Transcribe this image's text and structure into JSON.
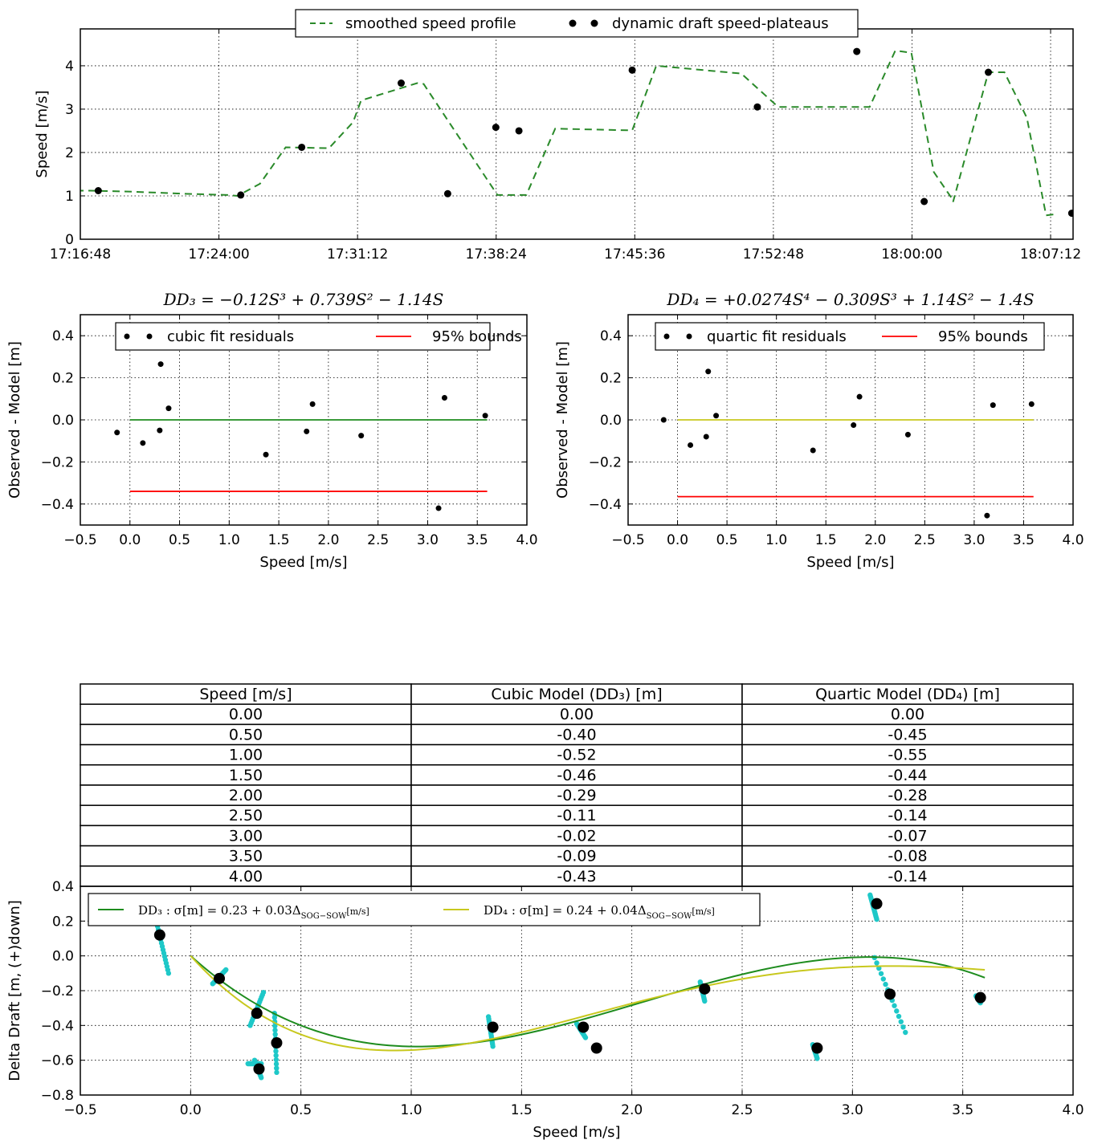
{
  "chart_data": [
    {
      "id": "speed",
      "type": "line",
      "xlabel": "",
      "ylabel": "Speed [m/s]",
      "xlim": [
        0,
        3094
      ],
      "ylim": [
        0,
        4.85
      ],
      "grid": true,
      "legend_placement": "top-center",
      "x_ticks": [
        {
          "v": 0,
          "label": "17:16:48"
        },
        {
          "v": 432,
          "label": "17:24:00"
        },
        {
          "v": 864,
          "label": "17:31:12"
        },
        {
          "v": 1296,
          "label": "17:38:24"
        },
        {
          "v": 1728,
          "label": "17:45:36"
        },
        {
          "v": 2160,
          "label": "17:52:48"
        },
        {
          "v": 2592,
          "label": "18:00:00"
        },
        {
          "v": 3024,
          "label": "18:07:12"
        }
      ],
      "y_ticks": [
        0,
        1,
        2,
        3,
        4
      ],
      "series": [
        {
          "name": "smoothed speed profile",
          "style": "dashed",
          "color": "#2a8a2a",
          "x": [
            -50,
            30,
            150,
            320,
            460,
            490,
            560,
            640,
            775,
            850,
            875,
            1050,
            1070,
            1300,
            1390,
            1480,
            1720,
            1795,
            2060,
            2175,
            2460,
            2540,
            2590,
            2660,
            2720,
            2720,
            2830,
            2880,
            2950,
            3010,
            3040
          ],
          "y": [
            1.12,
            1.12,
            1.1,
            1.05,
            1.02,
            1.0,
            1.28,
            2.12,
            2.1,
            2.7,
            3.2,
            3.6,
            3.58,
            1.02,
            1.02,
            2.55,
            2.51,
            4.0,
            3.82,
            3.05,
            3.05,
            4.35,
            4.3,
            1.55,
            0.9,
            0.86,
            3.85,
            3.85,
            2.8,
            0.55,
            0.58
          ]
        },
        {
          "name": "dynamic draft speed-plateaus",
          "style": "markers",
          "color": "#000000",
          "x": [
            56,
            500,
            690,
            1000,
            1145,
            1295,
            1367,
            1720,
            2110,
            2420,
            2630,
            2830,
            3090
          ],
          "y": [
            1.12,
            1.02,
            2.12,
            3.6,
            1.05,
            2.58,
            2.5,
            3.9,
            3.05,
            4.33,
            0.87,
            3.85,
            0.6
          ]
        }
      ]
    },
    {
      "id": "cubic-residuals",
      "type": "scatter",
      "title": "DD₃ = −0.12S³ + 0.739S² − 1.14S",
      "xlabel": "Speed [m/s]",
      "ylabel": "Observed - Model [m]",
      "xlim": [
        -0.5,
        4.0
      ],
      "ylim": [
        -0.5,
        0.5
      ],
      "grid": true,
      "legend_placement": "top-center",
      "x_ticks": [
        -0.5,
        0.0,
        0.5,
        1.0,
        1.5,
        2.0,
        2.5,
        3.0,
        3.5,
        4.0
      ],
      "y_ticks": [
        -0.4,
        -0.2,
        0.0,
        0.2,
        0.4
      ],
      "points": {
        "name": "cubic fit residuals",
        "x": [
          -0.13,
          0.13,
          0.3,
          0.31,
          0.39,
          1.37,
          1.78,
          1.84,
          2.33,
          3.11,
          3.17,
          3.58
        ],
        "y": [
          -0.06,
          -0.11,
          -0.05,
          0.265,
          0.055,
          -0.165,
          -0.055,
          0.075,
          -0.075,
          -0.42,
          0.105,
          0.02
        ]
      },
      "zero_line": {
        "x": [
          0,
          3.6
        ],
        "y": 0.0,
        "color": "#1e8c1e"
      },
      "bounds": {
        "name": "95% bounds",
        "x": [
          0,
          3.6
        ],
        "y": -0.34,
        "color": "#ff0000"
      }
    },
    {
      "id": "quartic-residuals",
      "type": "scatter",
      "title": "DD₄ = +0.0274S⁴ − 0.309S³ + 1.14S² − 1.4S",
      "xlabel": "Speed [m/s]",
      "ylabel": "Observed - Model [m]",
      "xlim": [
        -0.5,
        4.0
      ],
      "ylim": [
        -0.5,
        0.5
      ],
      "grid": true,
      "legend_placement": "top-center",
      "x_ticks": [
        -0.5,
        0.0,
        0.5,
        1.0,
        1.5,
        2.0,
        2.5,
        3.0,
        3.5,
        4.0
      ],
      "y_ticks": [
        -0.4,
        -0.2,
        0.0,
        0.2,
        0.4
      ],
      "points": {
        "name": "quartic fit residuals",
        "x": [
          -0.14,
          0.13,
          0.29,
          0.31,
          0.39,
          1.37,
          1.78,
          1.84,
          2.33,
          3.13,
          3.19,
          3.58
        ],
        "y": [
          0.0,
          -0.12,
          -0.08,
          0.23,
          0.02,
          -0.145,
          -0.025,
          0.11,
          -0.07,
          -0.455,
          0.07,
          0.075
        ]
      },
      "zero_line": {
        "x": [
          0,
          3.6
        ],
        "y": 0.0,
        "color": "#c8c81e"
      },
      "bounds": {
        "name": "95% bounds",
        "x": [
          0,
          3.6
        ],
        "y": -0.365,
        "color": "#ff0000"
      }
    },
    {
      "id": "draft-table",
      "type": "table",
      "columns": [
        "Speed [m/s]",
        "Cubic Model (DD₃) [m]",
        "Quartic Model (DD₄) [m]"
      ],
      "rows": [
        [
          "0.00",
          "0.00",
          "0.00"
        ],
        [
          "0.50",
          "-0.40",
          "-0.45"
        ],
        [
          "1.00",
          "-0.52",
          "-0.55"
        ],
        [
          "1.50",
          "-0.46",
          "-0.44"
        ],
        [
          "2.00",
          "-0.29",
          "-0.28"
        ],
        [
          "2.50",
          "-0.11",
          "-0.14"
        ],
        [
          "3.00",
          "-0.02",
          "-0.07"
        ],
        [
          "3.50",
          "-0.09",
          "-0.08"
        ],
        [
          "4.00",
          "-0.43",
          "-0.14"
        ]
      ]
    },
    {
      "id": "delta-draft",
      "type": "scatter",
      "xlabel": "Speed [m/s]",
      "ylabel": "Delta Draft [m, (+)down]",
      "xlim": [
        -0.5,
        4.0
      ],
      "ylim": [
        -0.8,
        0.4
      ],
      "grid": true,
      "legend_placement": "top-left",
      "x_ticks": [
        -0.5,
        0.0,
        0.5,
        1.0,
        1.5,
        2.0,
        2.5,
        3.0,
        3.5,
        4.0
      ],
      "y_ticks": [
        -0.8,
        -0.6,
        -0.4,
        -0.2,
        0.0,
        0.2,
        0.4
      ],
      "curves": [
        {
          "name": "DD₃ : σ[m] = 0.23 + 0.03Δ",
          "subscript": "SOG−SOW",
          "unit": "[m/s]",
          "color": "#1e8c1e",
          "coefficients": [
            0,
            -1.14,
            0.739,
            -0.12
          ],
          "x_range": [
            0,
            3.6
          ]
        },
        {
          "name": "DD₄ : σ[m] = 0.24 + 0.04Δ",
          "subscript": "SOG−SOW",
          "unit": "[m/s]",
          "color": "#c8c81e",
          "coefficients": [
            0,
            -1.4,
            1.14,
            -0.309,
            0.0274
          ],
          "x_range": [
            0,
            3.6
          ]
        }
      ],
      "clusters": {
        "color": "#1ec8c8",
        "segments": [
          {
            "x": [
              -0.15,
              -0.1
            ],
            "y": [
              0.17,
              -0.1
            ]
          },
          {
            "x": [
              0.1,
              0.16
            ],
            "y": [
              -0.16,
              -0.08
            ]
          },
          {
            "x": [
              0.27,
              0.33
            ],
            "y": [
              -0.4,
              -0.21
            ]
          },
          {
            "x": [
              0.29,
              0.32
            ],
            "y": [
              -0.6,
              -0.7
            ]
          },
          {
            "x": [
              0.26,
              0.32
            ],
            "y": [
              -0.62,
              -0.62
            ]
          },
          {
            "x": [
              0.38,
              0.39
            ],
            "y": [
              -0.33,
              -0.67
            ]
          },
          {
            "x": [
              1.35,
              1.37
            ],
            "y": [
              -0.35,
              -0.52
            ]
          },
          {
            "x": [
              1.75,
              1.79
            ],
            "y": [
              -0.39,
              -0.47
            ]
          },
          {
            "x": [
              2.31,
              2.33
            ],
            "y": [
              -0.15,
              -0.26
            ]
          },
          {
            "x": [
              2.82,
              2.84
            ],
            "y": [
              -0.51,
              -0.59
            ]
          },
          {
            "x": [
              3.08,
              3.11
            ],
            "y": [
              0.35,
              0.21
            ]
          },
          {
            "x": [
              3.1,
              3.24
            ],
            "y": [
              -0.01,
              -0.44
            ]
          },
          {
            "x": [
              3.56,
              3.58
            ],
            "y": [
              -0.23,
              -0.27
            ]
          }
        ]
      },
      "plateaus": {
        "x": [
          -0.14,
          0.13,
          0.3,
          0.31,
          0.39,
          1.37,
          1.78,
          1.84,
          2.33,
          2.84,
          3.11,
          3.17,
          3.58
        ],
        "y": [
          0.12,
          -0.13,
          -0.33,
          -0.65,
          -0.5,
          -0.41,
          -0.41,
          -0.53,
          -0.19,
          -0.53,
          0.3,
          -0.22,
          -0.24
        ]
      }
    }
  ]
}
